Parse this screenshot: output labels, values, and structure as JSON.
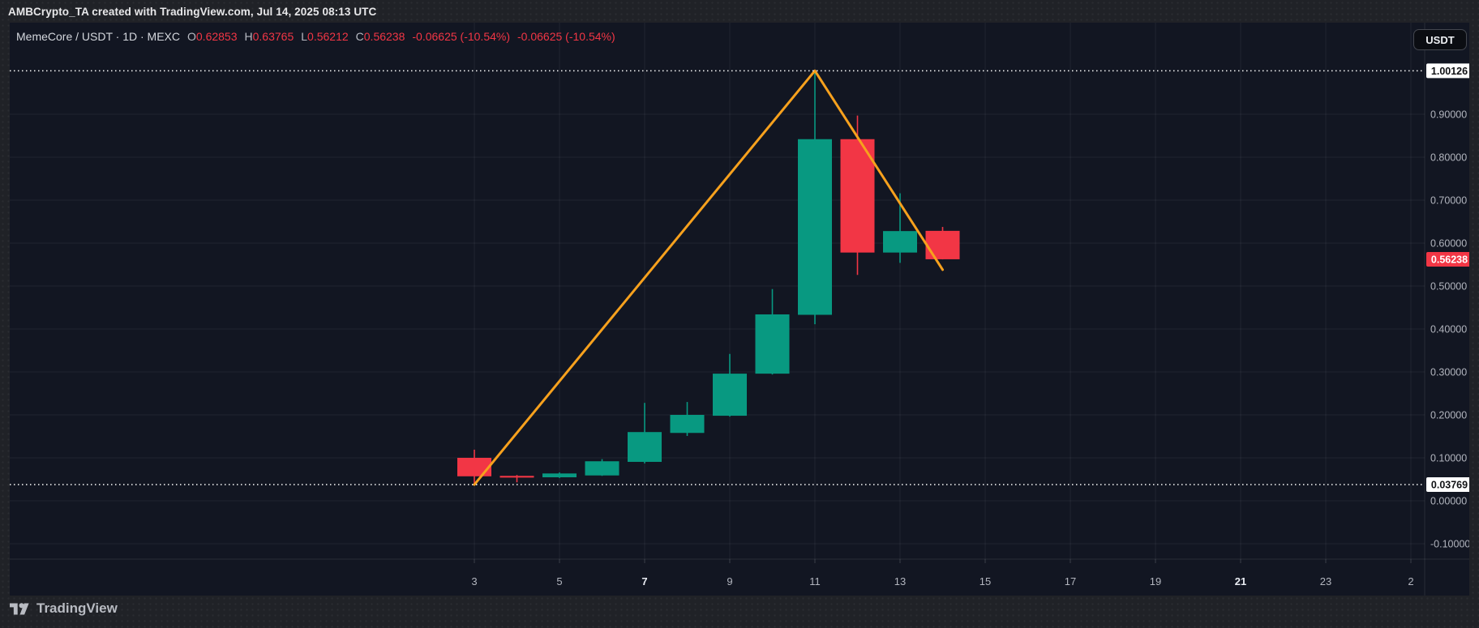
{
  "top_bar": {
    "text": "AMBCrypto_TA created with TradingView.com, Jul 14, 2025 08:13 UTC"
  },
  "legend": {
    "symbol": "MemeCore / USDT · 1D · MEXC",
    "ohlc": [
      {
        "label": "O",
        "value": "0.62853"
      },
      {
        "label": "H",
        "value": "0.63765"
      },
      {
        "label": "L",
        "value": "0.56212"
      },
      {
        "label": "C",
        "value": "0.56238"
      }
    ],
    "change": "-0.06625 (-10.54%)",
    "change_secondary": "-0.06625 (-10.54%)"
  },
  "currency_button": {
    "label": "USDT"
  },
  "footer": {
    "brand": "TradingView"
  },
  "colors": {
    "up": "#089981",
    "down": "#f23645",
    "trendline": "#f7a11d",
    "marker_label_bg": "#ffffff",
    "last_price_bg": "#f23645",
    "panel_background": "#121622",
    "outer_background": "#202227"
  },
  "chart_data": {
    "type": "candlestick",
    "symbol": "MemeCore / USDT",
    "interval": "1D",
    "exchange": "MEXC",
    "x_axis": {
      "ticks": [
        {
          "label": "3",
          "bold": false
        },
        {
          "label": "5",
          "bold": false
        },
        {
          "label": "7",
          "bold": true
        },
        {
          "label": "9",
          "bold": false
        },
        {
          "label": "11",
          "bold": false
        },
        {
          "label": "13",
          "bold": false
        },
        {
          "label": "15",
          "bold": false
        },
        {
          "label": "17",
          "bold": false
        },
        {
          "label": "19",
          "bold": false
        },
        {
          "label": "21",
          "bold": true
        },
        {
          "label": "23",
          "bold": false
        },
        {
          "label": "2",
          "bold": false
        }
      ]
    },
    "y_axis": {
      "ticks": [
        "0.90000",
        "0.80000",
        "0.70000",
        "0.60000",
        "0.50000",
        "0.40000",
        "0.30000",
        "0.20000",
        "0.10000",
        "0.00000",
        "-0.10000"
      ],
      "range_visible": [
        -0.136,
        1.113
      ],
      "markers": [
        {
          "label": "1.00126",
          "price": 1.00126
        },
        {
          "label": "0.03769",
          "price": 0.03769
        }
      ],
      "last_price": {
        "label": "0.56238",
        "price": 0.56238
      }
    },
    "candles": [
      {
        "date": 3,
        "open": 0.1,
        "high": 0.119,
        "low": 0.03769,
        "close": 0.057
      },
      {
        "date": 4,
        "open": 0.058,
        "high": 0.06,
        "low": 0.043,
        "close": 0.054
      },
      {
        "date": 5,
        "open": 0.0547,
        "high": 0.066,
        "low": 0.053,
        "close": 0.0636
      },
      {
        "date": 6,
        "open": 0.059,
        "high": 0.097,
        "low": 0.058,
        "close": 0.092
      },
      {
        "date": 7,
        "open": 0.0906,
        "high": 0.228,
        "low": 0.087,
        "close": 0.16
      },
      {
        "date": 8,
        "open": 0.158,
        "high": 0.23,
        "low": 0.151,
        "close": 0.2
      },
      {
        "date": 9,
        "open": 0.198,
        "high": 0.342,
        "low": 0.196,
        "close": 0.296
      },
      {
        "date": 10,
        "open": 0.296,
        "high": 0.493,
        "low": 0.294,
        "close": 0.434
      },
      {
        "date": 11,
        "open": 0.433,
        "high": 1.00126,
        "low": 0.411,
        "close": 0.842
      },
      {
        "date": 12,
        "open": 0.842,
        "high": 0.897,
        "low": 0.526,
        "close": 0.578
      },
      {
        "date": 13,
        "open": 0.578,
        "high": 0.716,
        "low": 0.554,
        "close": 0.628
      },
      {
        "date": 14,
        "open": 0.62853,
        "high": 0.63765,
        "low": 0.56212,
        "close": 0.56238
      }
    ],
    "trendline": {
      "points": [
        {
          "date": 3,
          "price": 0.03769
        },
        {
          "date": 11,
          "price": 1.00126
        },
        {
          "date": 14,
          "price": 0.538
        }
      ]
    }
  }
}
